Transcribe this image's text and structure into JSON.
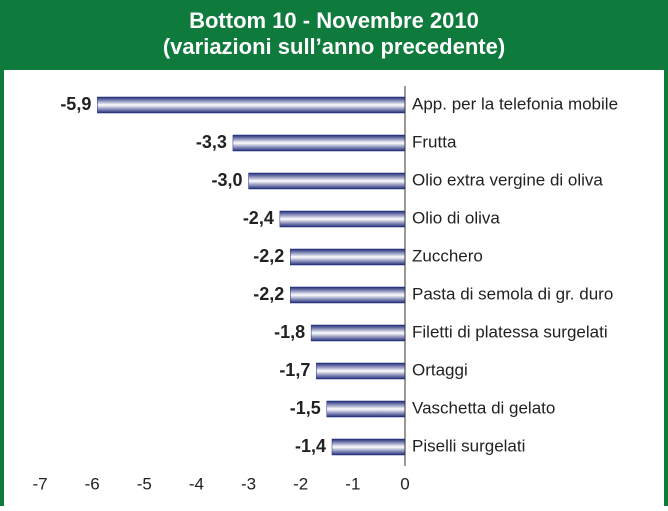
{
  "chart_data": {
    "type": "hbar",
    "title": "Bottom 10 - Novembre 2010",
    "subtitle": "(variazioni sull’anno precedente)",
    "categories": [
      "App. per la telefonia mobile",
      "Frutta",
      "Olio extra vergine di oliva",
      "Olio di oliva",
      "Zucchero",
      "Pasta di semola di gr. duro",
      "Filetti di platessa surgelati",
      "Ortaggi",
      "Vaschetta di gelato",
      "Piselli surgelati"
    ],
    "values": [
      -5.9,
      -3.3,
      -3.0,
      -2.4,
      -2.2,
      -2.2,
      -1.8,
      -1.7,
      -1.5,
      -1.4
    ],
    "value_labels": [
      "-5,9",
      "-3,3",
      "-3,0",
      "-2,4",
      "-2,2",
      "-2,2",
      "-1,8",
      "-1,7",
      "-1,5",
      "-1,4"
    ],
    "color": "#1f2a7a",
    "xlim": [
      -7,
      0
    ],
    "xticks": [
      -7,
      -6,
      -5,
      -4,
      -3,
      -2,
      -1,
      0
    ]
  }
}
